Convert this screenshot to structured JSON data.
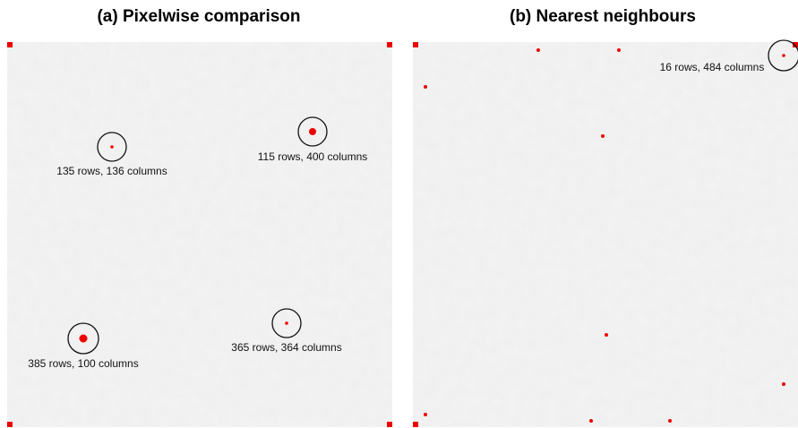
{
  "panels": [
    {
      "title": "(a) Pixelwise comparison",
      "annotations": [
        "135 rows, 136 columns",
        "115 rows, 400 columns",
        "385 rows, 100 columns",
        "365 rows, 364 columns"
      ]
    },
    {
      "title": "(b) Nearest neighbours",
      "annotations": [
        "16 rows, 484 columns"
      ]
    }
  ]
}
